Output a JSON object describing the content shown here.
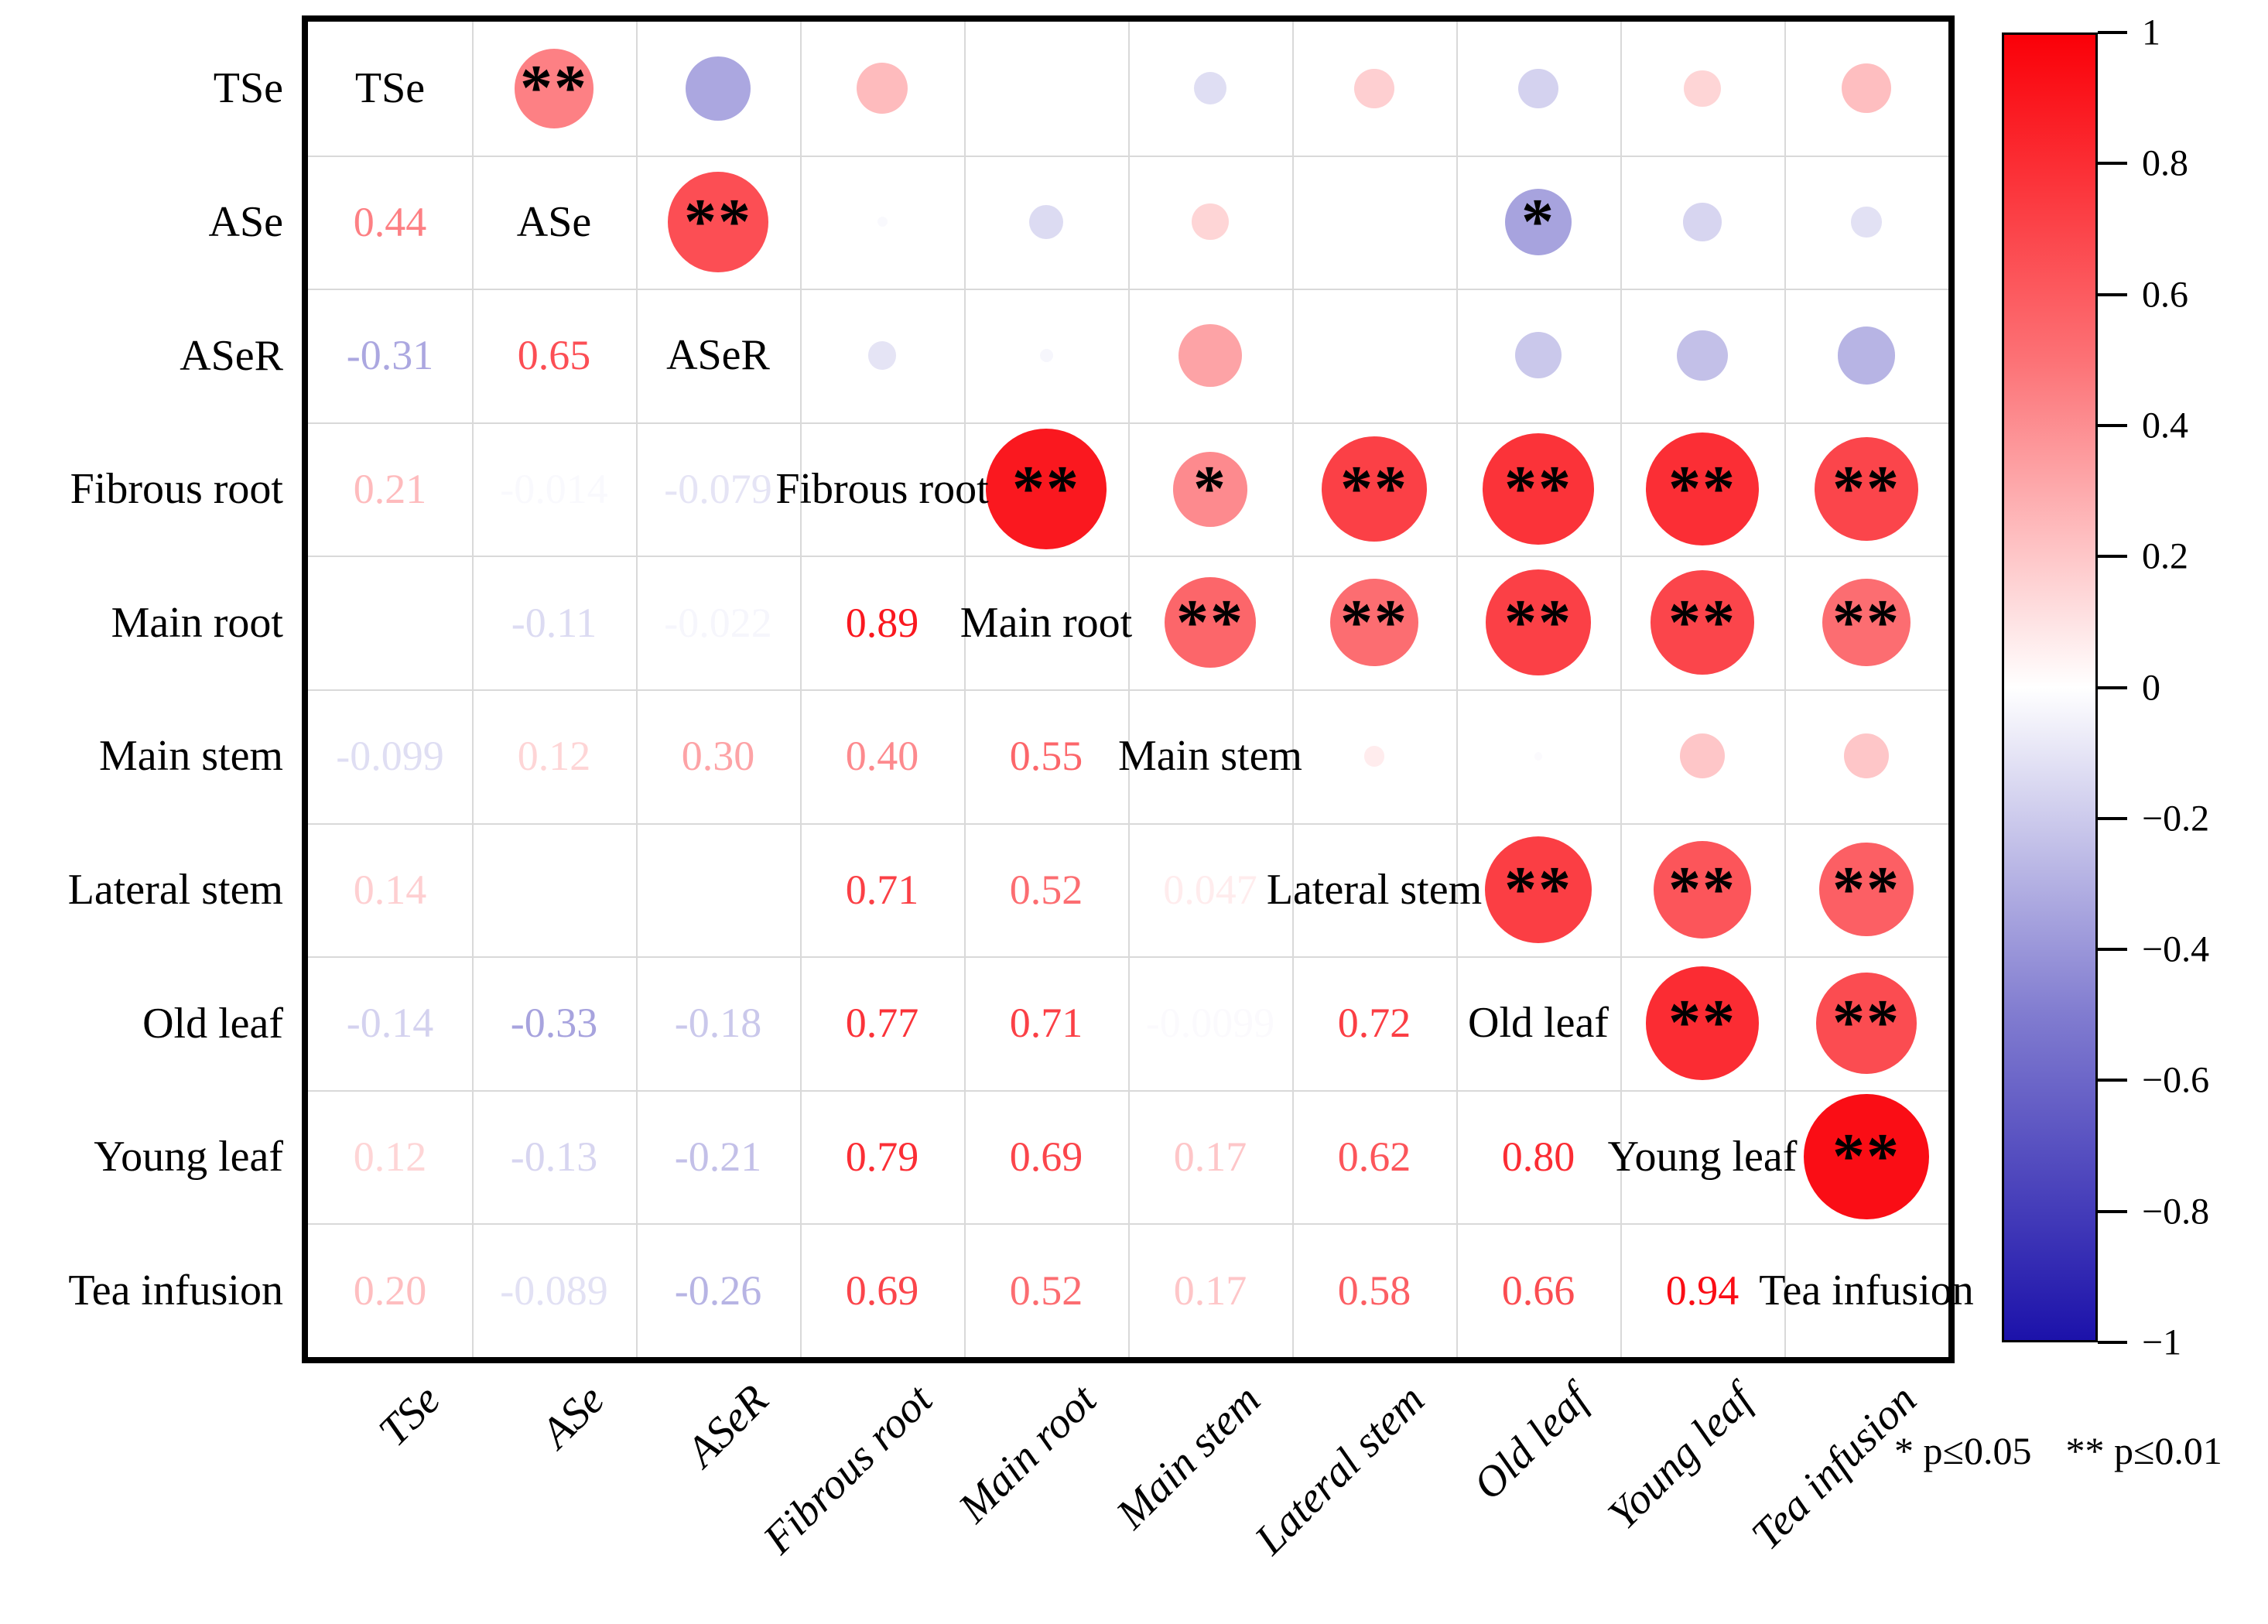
{
  "chart_data": {
    "type": "heatmap",
    "subtype": "correlation-matrix",
    "description": "Mixed correlation plot: coefficients in lower triangle, proportional colored circles with significance stars in upper triangle, variable names on diagonal",
    "labels": [
      "TSe",
      "ASe",
      "ASeR",
      "Fibrous root",
      "Main root",
      "Main stem",
      "Lateral stem",
      "Old leaf",
      "Young leaf",
      "Tea infusion"
    ],
    "lower_triangle": [
      [],
      [
        "0.44"
      ],
      [
        "-0.31",
        "0.65"
      ],
      [
        "0.21",
        "-0.014",
        "-0.079"
      ],
      [
        null,
        "-0.11",
        "-0.022",
        "0.89"
      ],
      [
        "-0.099",
        "0.12",
        "0.30",
        "0.40",
        "0.55"
      ],
      [
        "0.14",
        null,
        null,
        "0.71",
        "0.52",
        "0.047"
      ],
      [
        "-0.14",
        "-0.33",
        "-0.18",
        "0.77",
        "0.71",
        "-0.0099",
        "0.72"
      ],
      [
        "0.12",
        "-0.13",
        "-0.21",
        "0.79",
        "0.69",
        "0.17",
        "0.62",
        "0.80"
      ],
      [
        "0.20",
        "-0.089",
        "-0.26",
        "0.69",
        "0.52",
        "0.17",
        "0.58",
        "0.66",
        "0.94"
      ]
    ],
    "significance": {
      "0-1": "**",
      "1-2": "**",
      "1-7": "*",
      "3-4": "**",
      "3-5": "*",
      "3-6": "**",
      "3-7": "**",
      "3-8": "**",
      "3-9": "**",
      "4-5": "**",
      "4-6": "**",
      "4-7": "**",
      "4-8": "**",
      "4-9": "**",
      "6-7": "**",
      "6-8": "**",
      "6-9": "**",
      "7-8": "**",
      "7-9": "**",
      "8-9": "**"
    },
    "colorbar": {
      "min": -1,
      "max": 1,
      "tick_labels": [
        "1",
        "0.8",
        "0.6",
        "0.4",
        "0.2",
        "0",
        "−0.2",
        "−0.4",
        "−0.6",
        "−0.8",
        "−1"
      ],
      "positive_color": "#fa0008",
      "zero_color": "#ffffff",
      "negative_color": "#1c12aa"
    },
    "legend": {
      "p05": "* p≤0.05",
      "p01": "** p≤0.01"
    }
  }
}
